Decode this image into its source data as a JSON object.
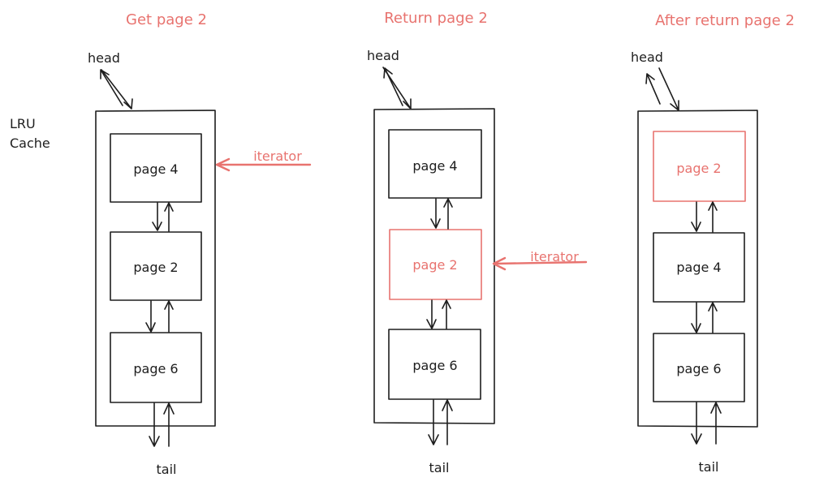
{
  "side_label": {
    "line1": "LRU",
    "line2": "Cache"
  },
  "colors": {
    "ink": "#1e1e1e",
    "highlight": "#e8736f"
  },
  "panels": [
    {
      "title": "Get page 2",
      "head_label": "head",
      "tail_label": "tail",
      "nodes": [
        "page 4",
        "page 2",
        "page 6"
      ],
      "highlighted_node": null,
      "iterator_label": "iterator",
      "iterator_at": "page 4"
    },
    {
      "title": "Return page 2",
      "head_label": "head",
      "tail_label": "tail",
      "nodes": [
        "page 4",
        "page 2",
        "page 6"
      ],
      "highlighted_node": "page 2",
      "iterator_label": "iterator",
      "iterator_at": "page 2"
    },
    {
      "title": "After return page 2",
      "head_label": "head",
      "tail_label": "tail",
      "nodes": [
        "page 2",
        "page 4",
        "page 6"
      ],
      "highlighted_node": "page 2",
      "iterator_label": "",
      "iterator_at": null
    }
  ]
}
